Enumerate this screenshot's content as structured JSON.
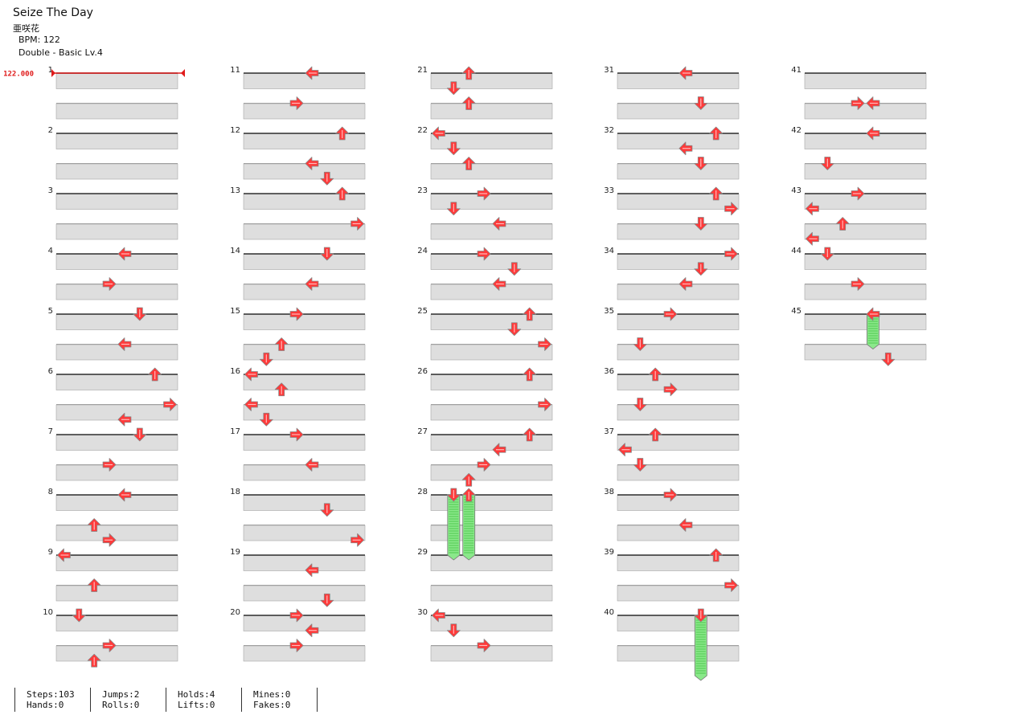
{
  "song": {
    "title": "Seize The Day",
    "artist": "亜咲花",
    "bpm_line": "BPM: 122",
    "chart_line": "Double - Basic  Lv.4"
  },
  "bpm_marker": {
    "label": "122.000"
  },
  "stats": {
    "steps": "Steps:103",
    "hands": "Hands:0",
    "jumps": "Jumps:2",
    "rolls": "Rolls:0",
    "holds": "Holds:4",
    "lifts": "Lifts:0",
    "mines": "Mines:0",
    "fakes": "Fakes:0"
  },
  "colors": {
    "note": "#ff3a3a",
    "note_outline": "#888888",
    "hold_body": "#8be88b",
    "hold_stripe": "#3fbf3f",
    "bpm_marker": "#e01b1b",
    "row_shade": "#dedede"
  },
  "columns_per_measure": 8,
  "measures": [
    {
      "number": "1",
      "notes": []
    },
    {
      "number": "2",
      "notes": []
    },
    {
      "number": "3",
      "notes": []
    },
    {
      "number": "4",
      "notes": [
        [
          0,
          4,
          "left"
        ],
        [
          1,
          3,
          "right"
        ]
      ]
    },
    {
      "number": "5",
      "notes": [
        [
          0,
          5,
          "down"
        ],
        [
          1,
          4,
          "left"
        ]
      ]
    },
    {
      "number": "6",
      "notes": [
        [
          0,
          6,
          "up"
        ],
        [
          1,
          7,
          "right"
        ]
      ]
    },
    {
      "number": "7",
      "notes": [
        [
          -0.5,
          4,
          "left"
        ],
        [
          0,
          5,
          "down"
        ],
        [
          1,
          3,
          "right"
        ]
      ]
    },
    {
      "number": "8",
      "notes": [
        [
          0,
          4,
          "left"
        ],
        [
          1,
          2,
          "up"
        ],
        [
          1.5,
          3,
          "right"
        ]
      ]
    },
    {
      "number": "9",
      "notes": [
        [
          0,
          0,
          "left"
        ],
        [
          1,
          2,
          "up"
        ]
      ]
    },
    {
      "number": "10",
      "notes": [
        [
          0,
          1,
          "down"
        ],
        [
          1,
          3,
          "right"
        ],
        [
          1.5,
          2,
          "up"
        ]
      ]
    },
    {
      "number": "11",
      "notes": [
        [
          0,
          4,
          "left"
        ],
        [
          1,
          3,
          "right"
        ]
      ]
    },
    {
      "number": "12",
      "notes": [
        [
          0,
          6,
          "up"
        ],
        [
          1,
          4,
          "left"
        ],
        [
          1.5,
          5,
          "down"
        ]
      ]
    },
    {
      "number": "13",
      "notes": [
        [
          0,
          6,
          "up"
        ],
        [
          1,
          7,
          "right"
        ]
      ]
    },
    {
      "number": "14",
      "notes": [
        [
          0,
          5,
          "down"
        ],
        [
          1,
          4,
          "left"
        ]
      ]
    },
    {
      "number": "15",
      "notes": [
        [
          0,
          3,
          "right"
        ],
        [
          1,
          2,
          "up"
        ],
        [
          1.5,
          1,
          "down"
        ]
      ]
    },
    {
      "number": "16",
      "notes": [
        [
          0,
          0,
          "left"
        ],
        [
          0.5,
          2,
          "up"
        ],
        [
          1,
          0,
          "left"
        ],
        [
          1.5,
          1,
          "down"
        ]
      ]
    },
    {
      "number": "17",
      "notes": [
        [
          0,
          3,
          "right"
        ],
        [
          1,
          4,
          "left"
        ]
      ]
    },
    {
      "number": "18",
      "notes": [
        [
          0.5,
          5,
          "down"
        ],
        [
          1.5,
          7,
          "right"
        ]
      ]
    },
    {
      "number": "19",
      "notes": [
        [
          0.5,
          4,
          "left"
        ],
        [
          1.5,
          5,
          "down"
        ]
      ]
    },
    {
      "number": "20",
      "notes": [
        [
          0,
          3,
          "right"
        ],
        [
          0.5,
          4,
          "left"
        ],
        [
          1,
          3,
          "right"
        ]
      ]
    },
    {
      "number": "21",
      "notes": [
        [
          0,
          2,
          "up"
        ],
        [
          0.5,
          1,
          "down"
        ],
        [
          1,
          2,
          "up"
        ]
      ]
    },
    {
      "number": "22",
      "notes": [
        [
          0,
          0,
          "left"
        ],
        [
          0.5,
          1,
          "down"
        ],
        [
          1,
          2,
          "up"
        ]
      ]
    },
    {
      "number": "23",
      "notes": [
        [
          0,
          3,
          "right"
        ],
        [
          0.5,
          1,
          "down"
        ],
        [
          1,
          4,
          "left"
        ]
      ]
    },
    {
      "number": "24",
      "notes": [
        [
          0,
          3,
          "right"
        ],
        [
          0.5,
          5,
          "down"
        ],
        [
          1,
          4,
          "left"
        ]
      ]
    },
    {
      "number": "25",
      "notes": [
        [
          0,
          6,
          "up"
        ],
        [
          0.5,
          5,
          "down"
        ],
        [
          1,
          7,
          "right"
        ]
      ]
    },
    {
      "number": "26",
      "notes": [
        [
          0,
          6,
          "up"
        ],
        [
          1,
          7,
          "right"
        ]
      ]
    },
    {
      "number": "27",
      "notes": [
        [
          0,
          6,
          "up"
        ],
        [
          0.5,
          4,
          "left"
        ],
        [
          1,
          3,
          "right"
        ],
        [
          1.5,
          2,
          "up"
        ]
      ]
    },
    {
      "number": "28",
      "notes": [
        [
          0,
          1,
          "down"
        ],
        [
          0,
          2,
          "up"
        ]
      ]
    },
    {
      "number": "29",
      "notes": []
    },
    {
      "number": "30",
      "notes": [
        [
          0,
          0,
          "left"
        ],
        [
          0.5,
          1,
          "down"
        ],
        [
          1,
          3,
          "right"
        ]
      ]
    },
    {
      "number": "31",
      "notes": [
        [
          0,
          4,
          "left"
        ],
        [
          1,
          5,
          "down"
        ]
      ]
    },
    {
      "number": "32",
      "notes": [
        [
          0,
          6,
          "up"
        ],
        [
          0.5,
          4,
          "left"
        ],
        [
          1,
          5,
          "down"
        ]
      ]
    },
    {
      "number": "33",
      "notes": [
        [
          0,
          6,
          "up"
        ],
        [
          0.5,
          7,
          "right"
        ],
        [
          1,
          5,
          "down"
        ]
      ]
    },
    {
      "number": "34",
      "notes": [
        [
          0,
          7,
          "right"
        ],
        [
          0.5,
          5,
          "down"
        ],
        [
          1,
          4,
          "left"
        ]
      ]
    },
    {
      "number": "35",
      "notes": [
        [
          0,
          3,
          "right"
        ],
        [
          1,
          1,
          "down"
        ]
      ]
    },
    {
      "number": "36",
      "notes": [
        [
          0,
          2,
          "up"
        ],
        [
          0.5,
          3,
          "right"
        ],
        [
          1,
          1,
          "down"
        ]
      ]
    },
    {
      "number": "37",
      "notes": [
        [
          0,
          2,
          "up"
        ],
        [
          0.5,
          0,
          "left"
        ],
        [
          1,
          1,
          "down"
        ]
      ]
    },
    {
      "number": "38",
      "notes": [
        [
          0,
          3,
          "right"
        ],
        [
          1,
          4,
          "left"
        ]
      ]
    },
    {
      "number": "39",
      "notes": [
        [
          0,
          6,
          "up"
        ],
        [
          1,
          7,
          "right"
        ]
      ]
    },
    {
      "number": "40",
      "notes": [
        [
          0,
          5,
          "down"
        ]
      ]
    },
    {
      "number": "41",
      "notes": [
        [
          1,
          3,
          "right"
        ],
        [
          1,
          4,
          "left"
        ]
      ]
    },
    {
      "number": "42",
      "notes": [
        [
          0,
          4,
          "left"
        ],
        [
          1,
          1,
          "down"
        ]
      ]
    },
    {
      "number": "43",
      "notes": [
        [
          0,
          3,
          "right"
        ],
        [
          0.5,
          0,
          "left"
        ],
        [
          1,
          2,
          "up"
        ],
        [
          1.5,
          0,
          "left"
        ]
      ]
    },
    {
      "number": "44",
      "notes": [
        [
          0,
          1,
          "down"
        ],
        [
          1,
          3,
          "right"
        ]
      ]
    },
    {
      "number": "45",
      "notes": [
        [
          0,
          4,
          "left"
        ],
        [
          1.5,
          5,
          "down"
        ]
      ]
    }
  ],
  "holds": [
    {
      "measure": 28,
      "column": 1,
      "start_row": 0,
      "end_row": 2
    },
    {
      "measure": 28,
      "column": 2,
      "start_row": 0,
      "end_row": 2
    },
    {
      "measure": 40,
      "column": 5,
      "start_row": 0,
      "end_row": 2
    },
    {
      "measure": 45,
      "column": 4,
      "start_row": 0,
      "end_row": 1
    }
  ]
}
